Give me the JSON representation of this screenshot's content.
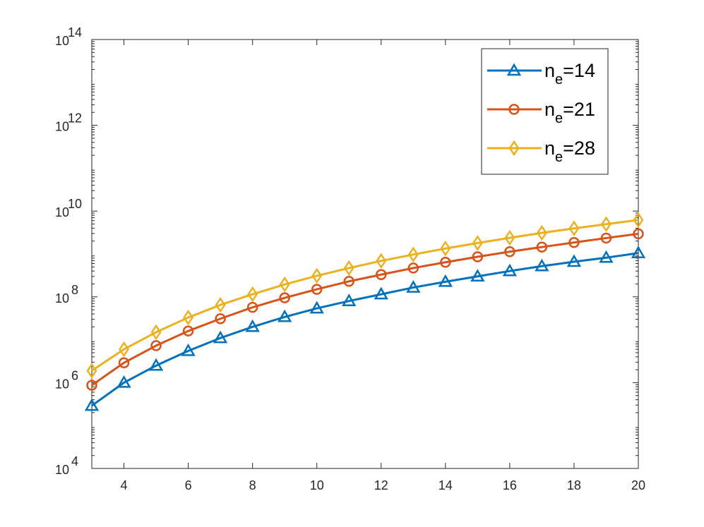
{
  "chart_data": {
    "type": "line",
    "title": "",
    "xlabel": "",
    "ylabel": "",
    "xlim": [
      3,
      20
    ],
    "ylim": [
      10000,
      100000000000000
    ],
    "yscale": "log",
    "grid": false,
    "legend_position": "top-right",
    "x_ticks": [
      4,
      6,
      8,
      10,
      12,
      14,
      16,
      18,
      20
    ],
    "y_ticks": [
      {
        "base": "10",
        "exp": "4",
        "value": 10000
      },
      {
        "base": "10",
        "exp": "6",
        "value": 1000000
      },
      {
        "base": "10",
        "exp": "8",
        "value": 100000000
      },
      {
        "base": "10",
        "exp": "10",
        "value": 10000000000
      },
      {
        "base": "10",
        "exp": "12",
        "value": 1000000000000
      },
      {
        "base": "10",
        "exp": "14",
        "value": 100000000000000
      }
    ],
    "x": [
      3,
      4,
      5,
      6,
      7,
      8,
      9,
      10,
      11,
      12,
      13,
      14,
      15,
      16,
      17,
      18,
      19,
      20
    ],
    "series": [
      {
        "name_main": "n",
        "name_sub": "e",
        "name_rest": "=14",
        "marker": "triangle",
        "color": "#0072BD",
        "values": [
          290000,
          1000000,
          2500000,
          5500000,
          11000000,
          20000000,
          34000000,
          54000000,
          80000000,
          115000000,
          165000000,
          225000000,
          300000000,
          400000000,
          520000000,
          660000000,
          820000000,
          1050000000
        ]
      },
      {
        "name_main": "n",
        "name_sub": "e",
        "name_rest": "=21",
        "marker": "circle",
        "color": "#D95319",
        "values": [
          870000,
          2900000,
          7300000,
          16000000,
          31000000,
          57000000,
          95000000,
          150000000,
          230000000,
          330000000,
          470000000,
          640000000,
          860000000,
          1130000000,
          1450000000,
          1850000000,
          2350000000,
          2950000000
        ]
      },
      {
        "name_main": "n",
        "name_sub": "e",
        "name_rest": "=28",
        "marker": "diamond",
        "color": "#EDB120",
        "values": [
          1900000,
          6000000,
          15000000,
          33000000,
          65000000,
          115000000,
          195000000,
          310000000,
          470000000,
          690000000,
          970000000,
          1340000000,
          1800000000,
          2380000000,
          3100000000,
          3950000000,
          4950000000,
          6200000000
        ]
      }
    ]
  }
}
